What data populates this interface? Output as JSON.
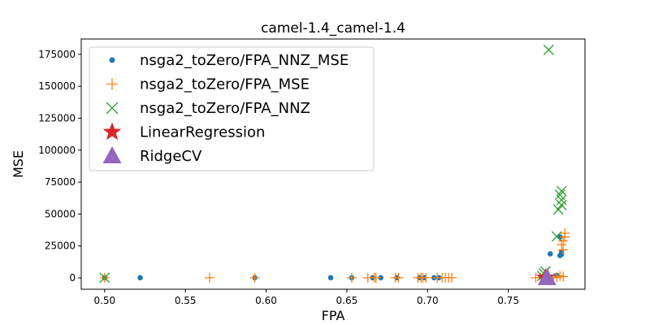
{
  "chart_data": {
    "type": "scatter",
    "title": "camel-1.4_camel-1.4",
    "xlabel": "FPA",
    "ylabel": "MSE",
    "xlim": [
      0.4855,
      0.7975
    ],
    "ylim": [
      -8900,
      187000
    ],
    "xticks": [
      0.5,
      0.55,
      0.6,
      0.65,
      0.7,
      0.75
    ],
    "xtick_labels": [
      "0.50",
      "0.55",
      "0.60",
      "0.65",
      "0.70",
      "0.75"
    ],
    "yticks": [
      0,
      25000,
      50000,
      75000,
      100000,
      125000,
      150000,
      175000
    ],
    "ytick_labels": [
      "0",
      "25000",
      "50000",
      "75000",
      "100000",
      "125000",
      "150000",
      "175000"
    ],
    "grid": false,
    "legend_position": "upper-left",
    "series": [
      {
        "name": "nsga2_toZero/FPA_NNZ_MSE",
        "marker": "dot",
        "color": "#1f77b4",
        "points": [
          [
            0.5,
            100
          ],
          [
            0.522,
            100
          ],
          [
            0.593,
            100
          ],
          [
            0.64,
            100
          ],
          [
            0.653,
            100
          ],
          [
            0.666,
            100
          ],
          [
            0.671,
            100
          ],
          [
            0.681,
            100
          ],
          [
            0.695,
            100
          ],
          [
            0.698,
            100
          ],
          [
            0.704,
            100
          ],
          [
            0.707,
            100
          ],
          [
            0.771,
            200
          ],
          [
            0.773,
            500
          ],
          [
            0.776,
            18800
          ],
          [
            0.782,
            17500
          ],
          [
            0.783,
            18500
          ],
          [
            0.783,
            20500
          ],
          [
            0.782,
            32000
          ],
          [
            0.78,
            2000
          ]
        ]
      },
      {
        "name": "nsga2_toZero/FPA_MSE",
        "marker": "plus",
        "color": "#ff7f0e",
        "points": [
          [
            0.5,
            100
          ],
          [
            0.565,
            100
          ],
          [
            0.593,
            100
          ],
          [
            0.653,
            100
          ],
          [
            0.663,
            100
          ],
          [
            0.667,
            100
          ],
          [
            0.668,
            100
          ],
          [
            0.68,
            100
          ],
          [
            0.682,
            100
          ],
          [
            0.694,
            100
          ],
          [
            0.696,
            100
          ],
          [
            0.697,
            100
          ],
          [
            0.699,
            100
          ],
          [
            0.706,
            100
          ],
          [
            0.709,
            100
          ],
          [
            0.711,
            100
          ],
          [
            0.713,
            100
          ],
          [
            0.715,
            100
          ],
          [
            0.767,
            100
          ],
          [
            0.77,
            100
          ],
          [
            0.775,
            100
          ],
          [
            0.778,
            100
          ],
          [
            0.78,
            500
          ],
          [
            0.782,
            1500
          ],
          [
            0.784,
            1000
          ],
          [
            0.783,
            26000
          ],
          [
            0.784,
            29000
          ],
          [
            0.785,
            32000
          ],
          [
            0.785,
            35000
          ],
          [
            0.784,
            22000
          ]
        ]
      },
      {
        "name": "nsga2_toZero/FPA_NNZ",
        "marker": "x",
        "color": "#2ca02c",
        "points": [
          [
            0.5,
            100
          ],
          [
            0.771,
            1500
          ],
          [
            0.772,
            3500
          ],
          [
            0.773,
            5000
          ],
          [
            0.775,
            178500
          ],
          [
            0.78,
            32500
          ],
          [
            0.781,
            53500
          ],
          [
            0.782,
            65000
          ],
          [
            0.783,
            57000
          ],
          [
            0.783,
            61000
          ],
          [
            0.783,
            68000
          ]
        ]
      },
      {
        "name": "LinearRegression",
        "marker": "star",
        "color": "#d62728",
        "points": [
          [
            0.773,
            100
          ]
        ]
      },
      {
        "name": "RidgeCV",
        "marker": "triangle",
        "color": "#9467bd",
        "points": [
          [
            0.774,
            100
          ]
        ]
      }
    ]
  }
}
